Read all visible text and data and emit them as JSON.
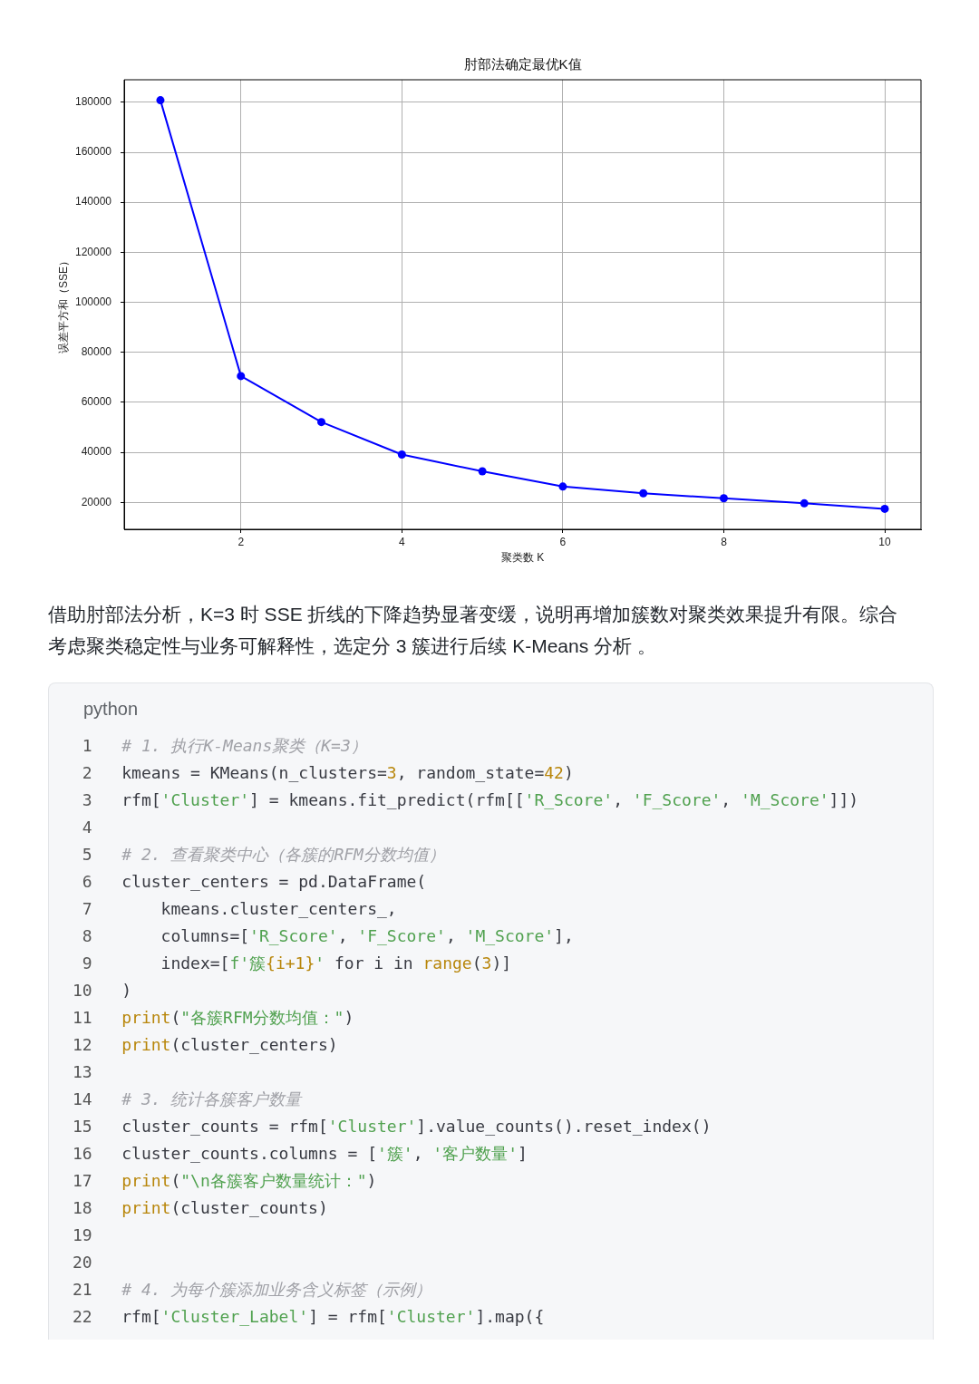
{
  "chart_data": {
    "type": "line",
    "title": "肘部法确定最优K值",
    "xlabel": "聚类数 K",
    "ylabel": "误差平方和（SSE）",
    "x": [
      1,
      2,
      3,
      4,
      5,
      6,
      7,
      8,
      9,
      10
    ],
    "values": [
      180800,
      70500,
      52100,
      39100,
      32400,
      26300,
      23600,
      21600,
      19600,
      17400
    ],
    "color": "#0000ff",
    "xlim": [
      0.55,
      10.45
    ],
    "xticks": [
      2,
      4,
      6,
      8,
      10
    ],
    "ylim": [
      9200,
      189000
    ],
    "yticks": [
      20000,
      40000,
      60000,
      80000,
      100000,
      120000,
      140000,
      160000,
      180000
    ],
    "grid": true,
    "marker": "circle",
    "annotations": [
      "借助肘部法分析，K=3 时 SSE 折线的下降趋势显著变缓，说明再增加簇数对聚类效果提升有限。综合考虑聚类稳定性与业务可解释性，选定分 3 簇进行后续 K-Means 分析 。",
      "python",
      "1\t# 1. 执行K-Means聚类（K=3）",
      "2\tkmeans = KMeans(n_clusters=3, random_state=42)",
      "3\trfm['Cluster'] = kmeans.fit_predict(rfm[['R_Score', 'F_Score', 'M_Score']])",
      "4",
      "5\t# 2. 查看聚类中心（各簇的RFM分数均值）",
      "6\tcluster_centers = pd.DataFrame(",
      "7\t    kmeans.cluster_centers_,",
      "8\t    columns=['R_Score', 'F_Score', 'M_Score'],",
      "9\t    index=[f'簇{i+1}' for i in range(3)]",
      "10\t)",
      "11\tprint(\"各簇RFM分数均值：\")",
      "12\tprint(cluster_centers)",
      "13",
      "14\t# 3. 统计各簇客户数量",
      "15\tcluster_counts = rfm['Cluster'].value_counts().reset_index()",
      "16\tcluster_counts.columns = ['簇', '客户数量']",
      "17\tprint(\"\\n各簇客户数量统计：\")",
      "18\tprint(cluster_counts)",
      "19",
      "20",
      "21\t# 4. 为每个簇添加业务含义标签（示例）",
      "22\trfm['Cluster_Label'] = rfm['Cluster'].map({"
    ]
  }
}
